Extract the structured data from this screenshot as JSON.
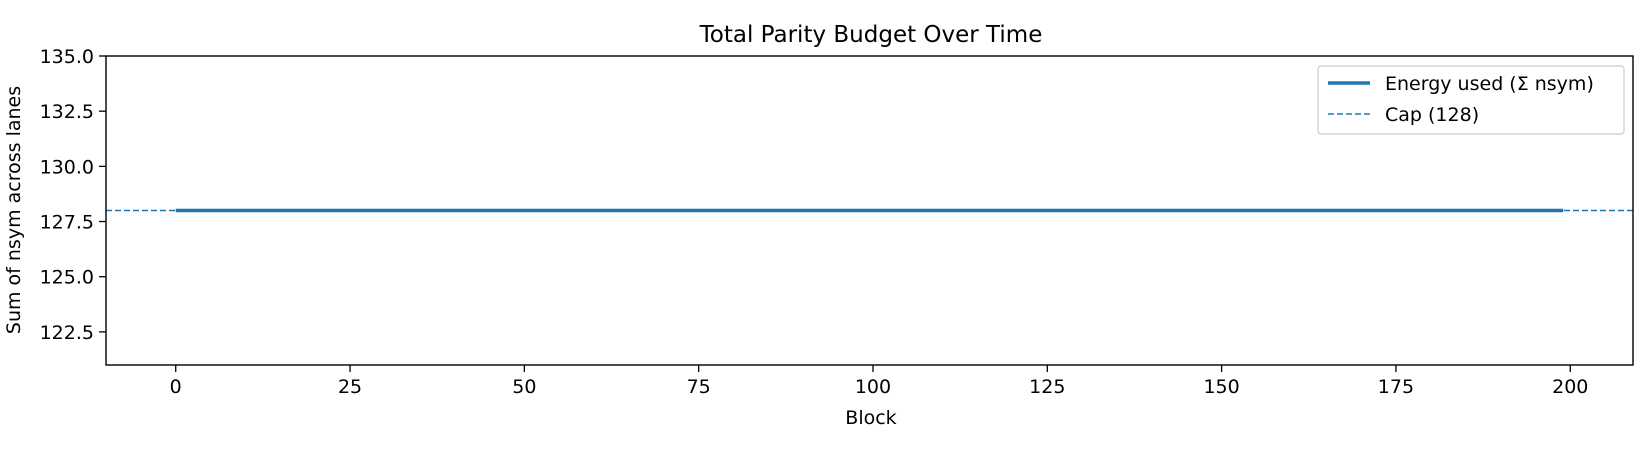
{
  "chart_data": {
    "type": "line",
    "title": "Total Parity Budget Over Time",
    "xlabel": "Block",
    "ylabel": "Sum of nsym across lanes",
    "xlim": [
      -10,
      209
    ],
    "ylim": [
      121,
      135
    ],
    "xticks": [
      0,
      25,
      50,
      75,
      100,
      125,
      150,
      175,
      200
    ],
    "yticks": [
      122.5,
      125.0,
      127.5,
      130.0,
      132.5,
      135.0
    ],
    "grid": false,
    "legend_position": "top-right",
    "series": [
      {
        "name": "Energy used (Σ nsym)",
        "style": "solid",
        "color": "#1f77b4",
        "x": [
          0,
          199
        ],
        "values": [
          128,
          128
        ]
      }
    ],
    "reference_lines": [
      {
        "name": "Cap (128)",
        "style": "dashed",
        "color": "#1f77b4",
        "y": 128
      }
    ]
  }
}
